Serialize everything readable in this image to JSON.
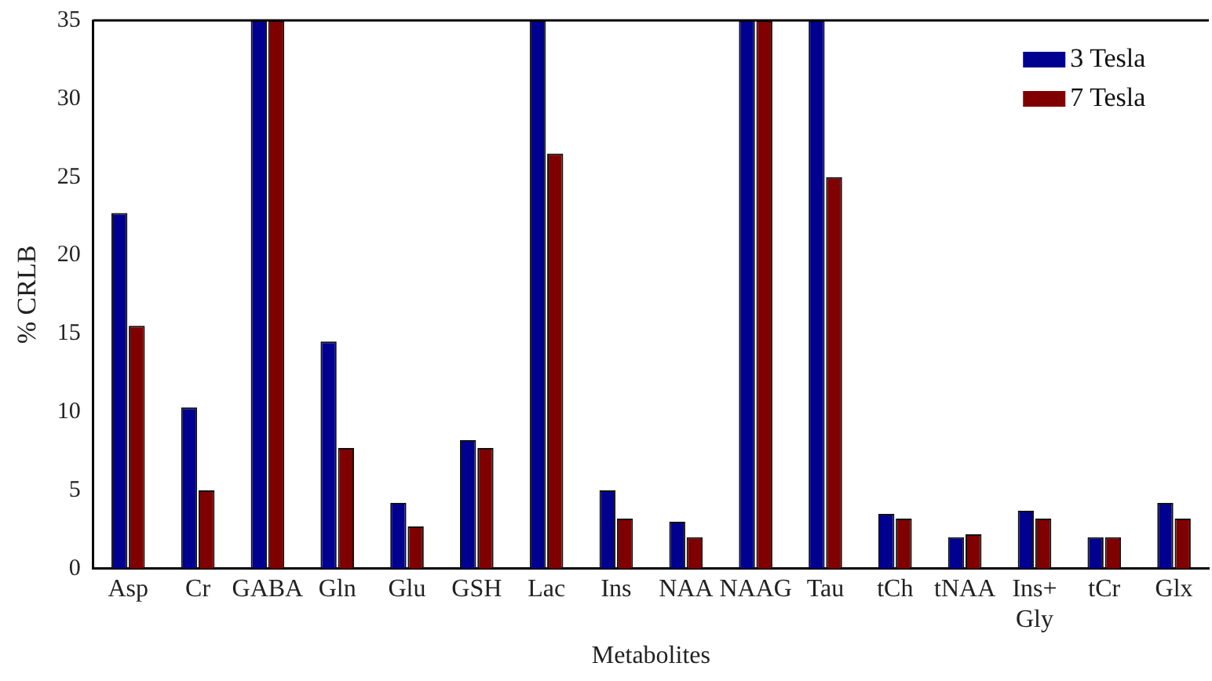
{
  "chart_data": {
    "type": "bar",
    "xlabel": "Metabolites",
    "ylabel": "% CRLB",
    "categories": [
      "Asp",
      "Cr",
      "GABA",
      "Gln",
      "Glu",
      "GSH",
      "Lac",
      "Ins",
      "NAA",
      "NAAG",
      "Tau",
      "tCh",
      "tNAA",
      "Ins+ Gly",
      "tCr",
      "Glx"
    ],
    "series": [
      {
        "name": "3 Tesla",
        "color": "#000090",
        "values": [
          22.7,
          10.3,
          35,
          14.5,
          4.2,
          8.2,
          35,
          5,
          3,
          35,
          35,
          3.5,
          2,
          3.7,
          2,
          4.2
        ]
      },
      {
        "name": "7 Tesla",
        "color": "#800000",
        "values": [
          15.5,
          5,
          35,
          7.7,
          2.7,
          7.7,
          26.5,
          3.2,
          2,
          35,
          25,
          3.2,
          2.2,
          3.2,
          2,
          3.2
        ]
      }
    ],
    "ylim": [
      0,
      35
    ],
    "yticks": [
      0,
      5,
      10,
      15,
      20,
      25,
      30,
      35
    ],
    "grid": false,
    "legend": "top right"
  }
}
